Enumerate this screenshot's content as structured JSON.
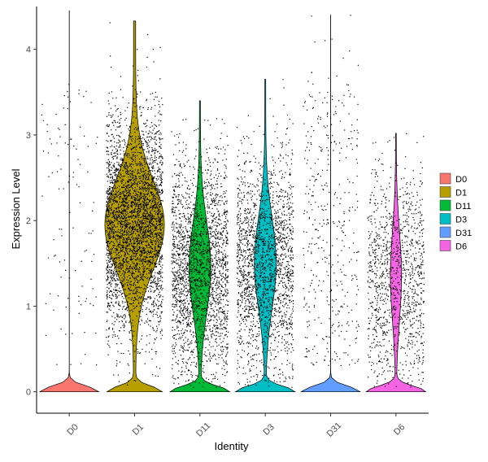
{
  "chart_data": {
    "type": "violin",
    "xlabel": "Identity",
    "ylabel": "Expression Level",
    "ylim": [
      -0.25,
      4.5
    ],
    "yticks": [
      0,
      1,
      2,
      3,
      4
    ],
    "grid": false,
    "legend_position": "right",
    "categories": [
      "D0",
      "D1",
      "D11",
      "D3",
      "D31",
      "D6"
    ],
    "colors": {
      "D0": "#F8766D",
      "D1": "#B79F00",
      "D11": "#00BA38",
      "D3": "#00BFC4",
      "D31": "#619CFF",
      "D6": "#F564E3"
    },
    "series": [
      {
        "name": "D0",
        "max": 4.45,
        "zero_fraction": 0.97,
        "nonzero_median": 1.6,
        "points_shown": 110
      },
      {
        "name": "D1",
        "max": 4.33,
        "zero_fraction": 0.1,
        "nonzero_median": 1.95,
        "points_shown": 3600
      },
      {
        "name": "D11",
        "max": 3.4,
        "zero_fraction": 0.25,
        "nonzero_median": 1.45,
        "points_shown": 2300
      },
      {
        "name": "D3",
        "max": 3.65,
        "zero_fraction": 0.25,
        "nonzero_median": 1.5,
        "points_shown": 2000
      },
      {
        "name": "D31",
        "max": 4.4,
        "zero_fraction": 0.97,
        "nonzero_median": 1.7,
        "points_shown": 420
      },
      {
        "name": "D6",
        "max": 3.02,
        "zero_fraction": 0.4,
        "nonzero_median": 1.35,
        "points_shown": 1200
      }
    ]
  }
}
